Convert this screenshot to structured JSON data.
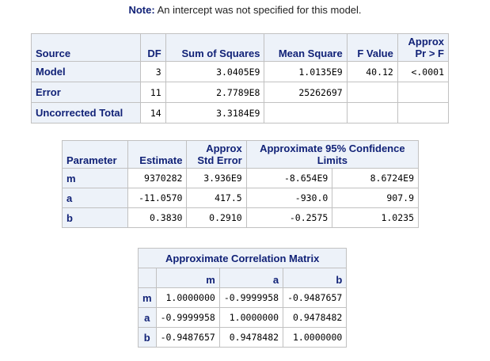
{
  "note": {
    "label": "Note:",
    "text": "An intercept was not specified for this model."
  },
  "anova": {
    "headers": {
      "source": "Source",
      "df": "DF",
      "ss": "Sum of Squares",
      "ms": "Mean Square",
      "f": "F Value",
      "p_line1": "Approx",
      "p_line2": "Pr > F"
    },
    "rows": [
      {
        "source": "Model",
        "df": "3",
        "ss": "3.0405E9",
        "ms": "1.0135E9",
        "f": "40.12",
        "p": "<.0001"
      },
      {
        "source": "Error",
        "df": "11",
        "ss": "2.7789E8",
        "ms": "25262697",
        "f": "",
        "p": ""
      },
      {
        "source": "Uncorrected Total",
        "df": "14",
        "ss": "3.3184E9",
        "ms": "",
        "f": "",
        "p": ""
      }
    ]
  },
  "params": {
    "headers": {
      "parameter": "Parameter",
      "estimate": "Estimate",
      "se_line1": "Approx",
      "se_line2": "Std Error",
      "ci_line1": "Approximate 95% Confidence",
      "ci_line2": "Limits"
    },
    "rows": [
      {
        "parameter": "m",
        "estimate": "9370282",
        "se": "3.936E9",
        "lower": "-8.654E9",
        "upper": "8.6724E9"
      },
      {
        "parameter": "a",
        "estimate": "-11.0570",
        "se": "417.5",
        "lower": "-930.0",
        "upper": "907.9"
      },
      {
        "parameter": "b",
        "estimate": "0.3830",
        "se": "0.2910",
        "lower": "-0.2575",
        "upper": "1.0235"
      }
    ]
  },
  "corr": {
    "title": "Approximate Correlation Matrix",
    "columns": [
      "m",
      "a",
      "b"
    ],
    "rows": [
      {
        "label": "m",
        "values": [
          "1.0000000",
          "-0.9999958",
          "-0.9487657"
        ]
      },
      {
        "label": "a",
        "values": [
          "-0.9999958",
          "1.0000000",
          "0.9478482"
        ]
      },
      {
        "label": "b",
        "values": [
          "-0.9487657",
          "0.9478482",
          "1.0000000"
        ]
      }
    ]
  }
}
